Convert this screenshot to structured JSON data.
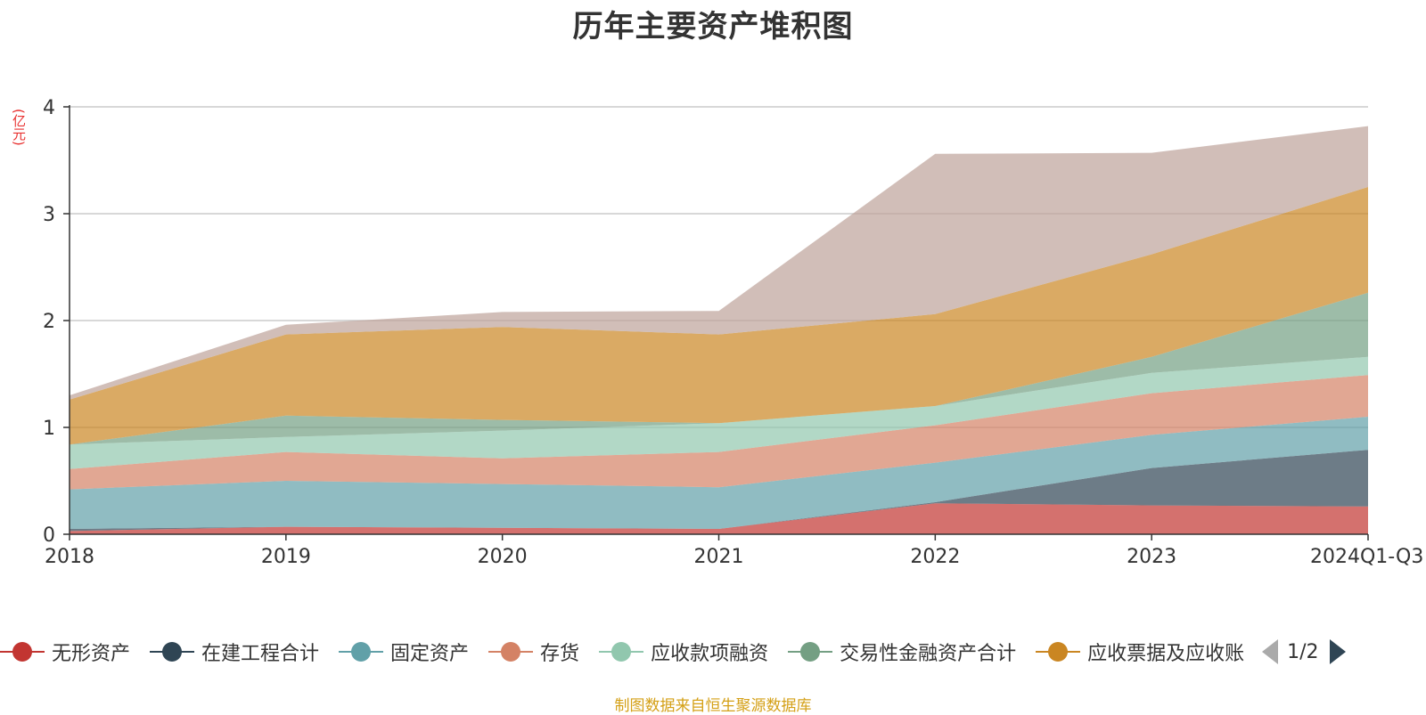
{
  "title": "历年主要资产堆积图",
  "unit": "(亿元)",
  "source": "制图数据来自恒生聚源数据库",
  "legend_pager": "1/2",
  "legend_visible": [
    "无形资产",
    "在建工程合计",
    "固定资产",
    "存货",
    "应收款项融资",
    "交易性金融资产合计",
    "应收票据及应收账"
  ],
  "chart_data": {
    "type": "area",
    "stacked": true,
    "x": [
      "2018",
      "2019",
      "2020",
      "2021",
      "2022",
      "2023",
      "2024Q1-Q3"
    ],
    "y_ticks": [
      "0",
      "1",
      "2",
      "3",
      "4"
    ],
    "ylim": [
      0,
      4
    ],
    "grid": true,
    "legend_position": "bottom",
    "series": [
      {
        "name": "无形资产",
        "color": "#c23531",
        "values": [
          0.03,
          0.07,
          0.06,
          0.05,
          0.29,
          0.27,
          0.26
        ]
      },
      {
        "name": "在建工程合计",
        "color": "#2f4554",
        "values": [
          0.02,
          0.0,
          0.0,
          0.0,
          0.01,
          0.35,
          0.53
        ]
      },
      {
        "name": "固定资产",
        "color": "#61a0a8",
        "values": [
          0.37,
          0.43,
          0.41,
          0.39,
          0.37,
          0.31,
          0.31
        ]
      },
      {
        "name": "存货",
        "color": "#d48265",
        "values": [
          0.19,
          0.27,
          0.24,
          0.33,
          0.35,
          0.39,
          0.39
        ]
      },
      {
        "name": "应收款项融资",
        "color": "#91c7ae",
        "values": [
          0.23,
          0.14,
          0.26,
          0.27,
          0.18,
          0.19,
          0.17
        ]
      },
      {
        "name": "交易性金融资产合计",
        "color": "#749f83",
        "values": [
          0.0,
          0.2,
          0.1,
          0.0,
          0.0,
          0.15,
          0.6
        ]
      },
      {
        "name": "应收票据及应收账",
        "color": "#ca8622",
        "values": [
          0.42,
          0.76,
          0.87,
          0.83,
          0.86,
          0.96,
          0.99
        ]
      },
      {
        "color": "#bda29a",
        "values": [
          0.04,
          0.09,
          0.14,
          0.22,
          1.5,
          0.95,
          0.57
        ]
      }
    ]
  }
}
